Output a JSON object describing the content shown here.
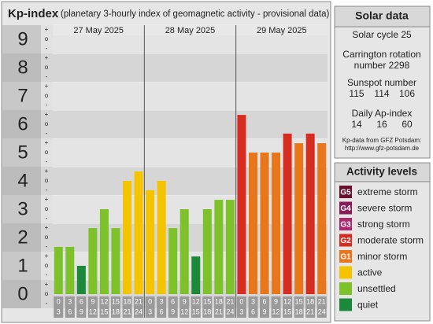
{
  "header": {
    "title": "Kp-index",
    "subtitle": "(planetary 3-hourly index of geomagnetic activity - provisional data)"
  },
  "chart_data": {
    "type": "bar",
    "days": [
      "27 May 2025",
      "28 May 2025",
      "29 May 2025"
    ],
    "hours_start": [
      0,
      3,
      6,
      9,
      12,
      15,
      18,
      21
    ],
    "hours_end": [
      3,
      6,
      9,
      12,
      15,
      18,
      21,
      24
    ],
    "minor_labels": [
      "-",
      "o",
      "+"
    ],
    "values": [
      1.67,
      1.67,
      1.0,
      2.33,
      3.0,
      2.33,
      4.0,
      4.33,
      3.67,
      4.0,
      2.33,
      3.0,
      1.33,
      3.0,
      3.33,
      3.33,
      6.33,
      5.0,
      5.0,
      5.0,
      5.67,
      5.33,
      5.67,
      5.33
    ],
    "colors": [
      "#7dc22a",
      "#7dc22a",
      "#1a8a3a",
      "#7dc22a",
      "#7dc22a",
      "#7dc22a",
      "#f5c400",
      "#f5c400",
      "#f5c400",
      "#f5c400",
      "#7dc22a",
      "#7dc22a",
      "#1a8a3a",
      "#7dc22a",
      "#7dc22a",
      "#7dc22a",
      "#d62d20",
      "#e8761a",
      "#e8761a",
      "#e8761a",
      "#d62d20",
      "#e8761a",
      "#d62d20",
      "#e8761a"
    ],
    "ylim": [
      -0.5,
      9.5
    ],
    "yticks": [
      0,
      1,
      2,
      3,
      4,
      5,
      6,
      7,
      8,
      9
    ]
  },
  "solar_data": {
    "title": "Solar data",
    "solar_cycle": "Solar cycle 25",
    "carrington": [
      "Carrington rotation",
      "number 2298"
    ],
    "sunspot_title": "Sunspot number",
    "sunspot_values": [
      115,
      114,
      106
    ],
    "ap_title": "Daily Ap-index",
    "ap_values": [
      14,
      16,
      60
    ],
    "source": [
      "Kp-data from GFZ Potsdam:",
      "http://www.gfz-potsdam.de"
    ]
  },
  "activity_levels": {
    "title": "Activity levels",
    "items": [
      {
        "badge": "G5",
        "label": "extreme storm",
        "color": "#6b0f2e"
      },
      {
        "badge": "G4",
        "label": "severe storm",
        "color": "#8a1a5a"
      },
      {
        "badge": "G3",
        "label": "strong storm",
        "color": "#b0266f"
      },
      {
        "badge": "G2",
        "label": "moderate storm",
        "color": "#d62d20"
      },
      {
        "badge": "G1",
        "label": "minor storm",
        "color": "#e8761a"
      },
      {
        "label": "active",
        "color": "#f5c400"
      },
      {
        "label": "unsettled",
        "color": "#7dc22a"
      },
      {
        "label": "quiet",
        "color": "#1a8a3a"
      }
    ]
  }
}
